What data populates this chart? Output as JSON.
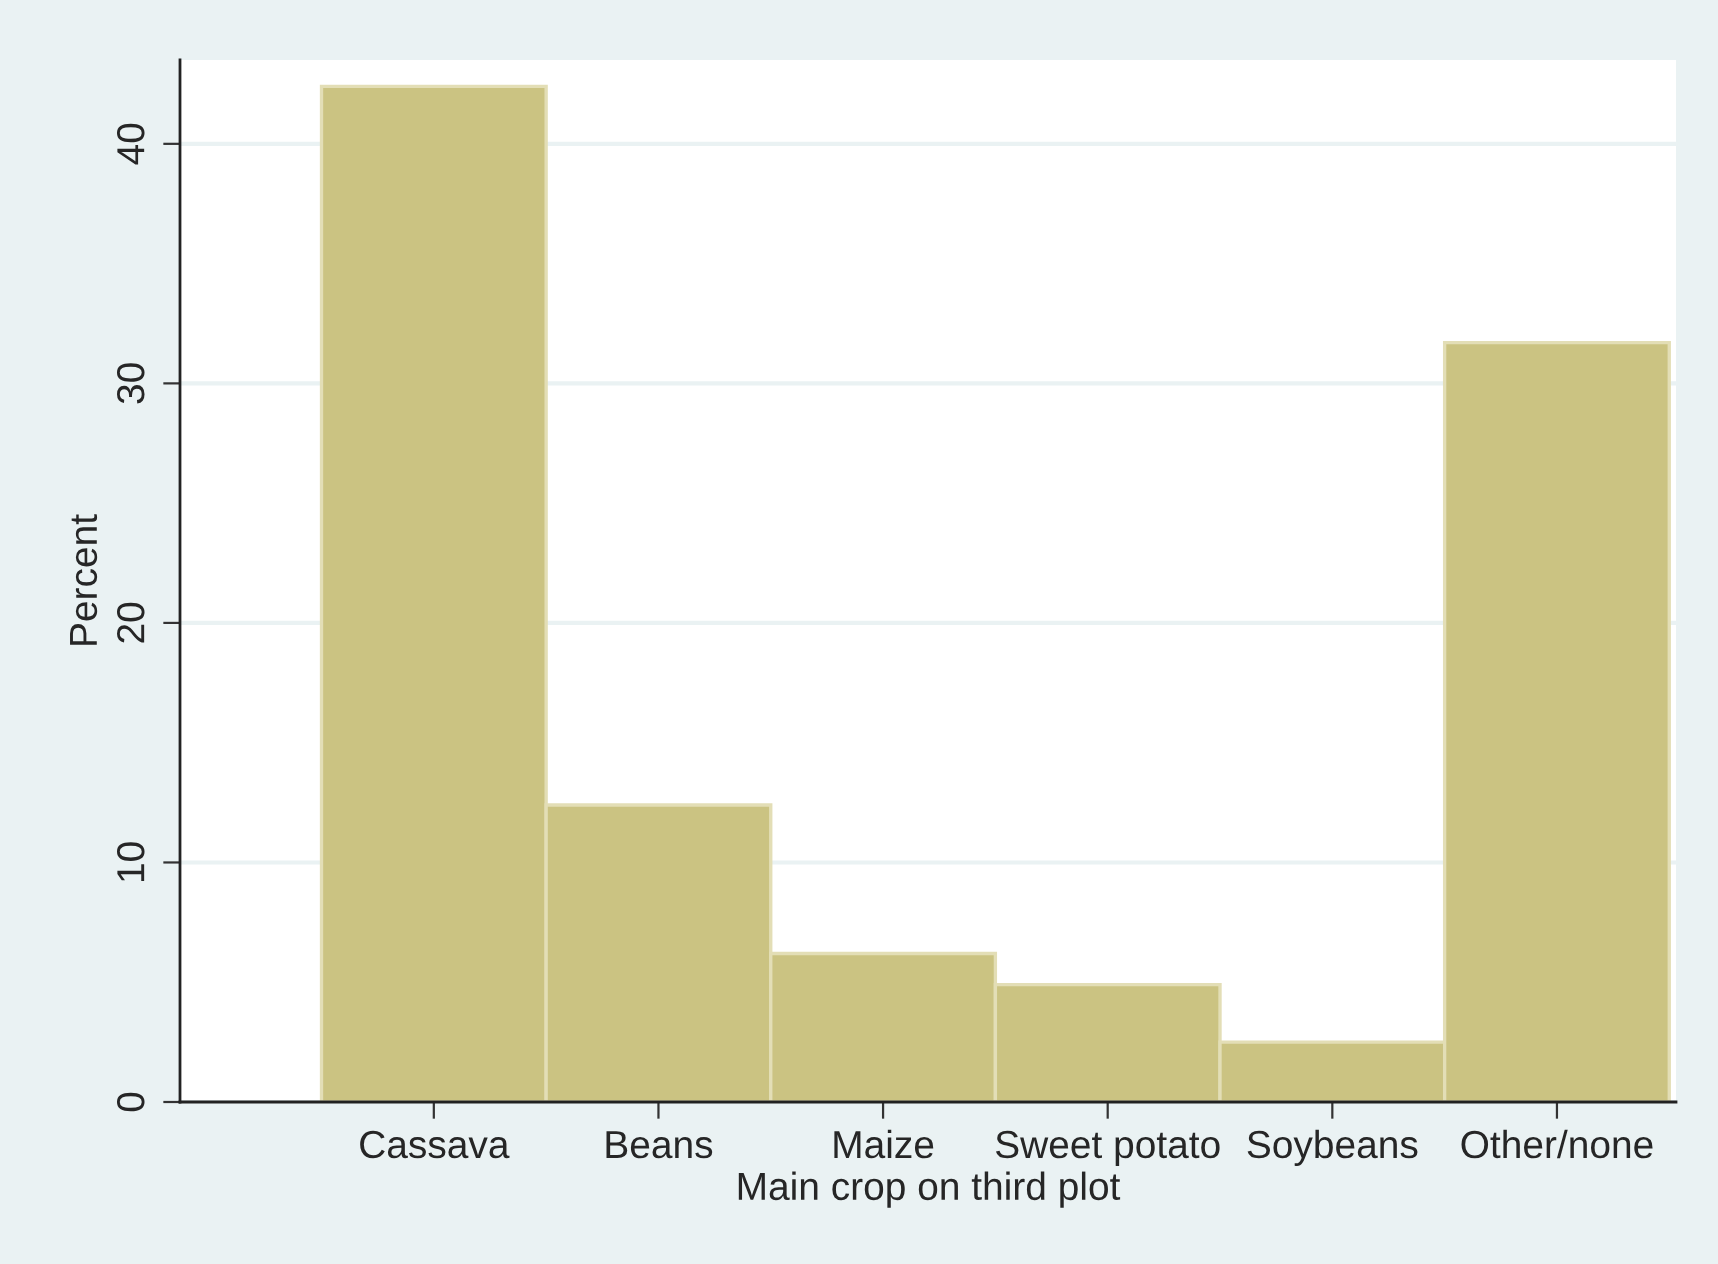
{
  "chart_data": {
    "type": "bar",
    "xlabel": "Main crop on third plot",
    "ylabel": "Percent",
    "categories": [
      "Cassava",
      "Beans",
      "Maize",
      "Sweet potato",
      "Soybeans",
      "Other/none"
    ],
    "values": [
      42.4,
      12.4,
      6.2,
      4.9,
      2.5,
      31.7
    ],
    "color": "#cbc382",
    "ylim": [
      0,
      43.5
    ],
    "yticks": [
      0,
      10,
      20,
      30,
      40
    ],
    "grid": "y"
  }
}
